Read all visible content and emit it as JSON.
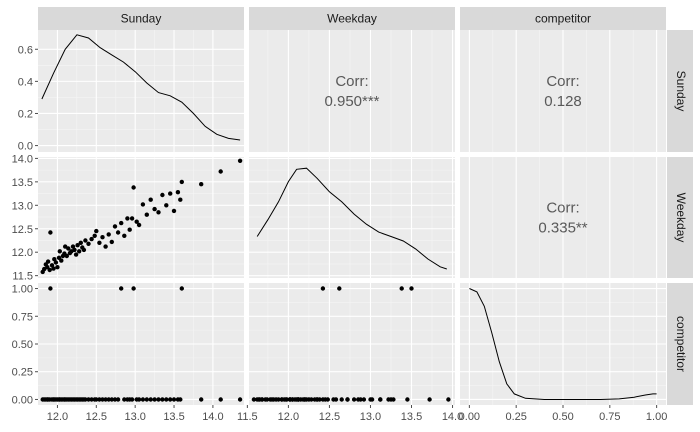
{
  "chart_data": {
    "type": "scatter-matrix",
    "variables": [
      "Sunday",
      "Weekday",
      "competitor"
    ],
    "axes": {
      "Sunday": {
        "x_range": [
          11.75,
          14.4
        ],
        "x_ticks": [
          {
            "v": 12.0,
            "l": "12.0"
          },
          {
            "v": 12.5,
            "l": "12.5"
          },
          {
            "v": 13.0,
            "l": "13.0"
          },
          {
            "v": 13.5,
            "l": "13.5"
          },
          {
            "v": 14.0,
            "l": "14.0"
          }
        ],
        "density_range": [
          -0.04,
          0.72
        ],
        "density_ticks": [
          {
            "v": 0.0,
            "l": "0.0"
          },
          {
            "v": 0.2,
            "l": "0.2"
          },
          {
            "v": 0.4,
            "l": "0.4"
          },
          {
            "v": 0.6,
            "l": "0.6"
          }
        ]
      },
      "Weekday": {
        "x_range": [
          11.52,
          14.03
        ],
        "x_ticks": [
          {
            "v": 11.5,
            "l": "11.5"
          },
          {
            "v": 12.0,
            "l": "12.0"
          },
          {
            "v": 12.5,
            "l": "12.5"
          },
          {
            "v": 13.0,
            "l": "13.0"
          },
          {
            "v": 13.5,
            "l": "13.5"
          },
          {
            "v": 14.0,
            "l": "14.0"
          }
        ],
        "y_range": [
          11.45,
          14.03
        ],
        "y_ticks": [
          {
            "v": 11.5,
            "l": "11.5"
          },
          {
            "v": 12.0,
            "l": "12.0"
          },
          {
            "v": 12.5,
            "l": "12.5"
          },
          {
            "v": 13.0,
            "l": "13.0"
          },
          {
            "v": 13.5,
            "l": "13.5"
          },
          {
            "v": 14.0,
            "l": "14.0"
          }
        ]
      },
      "competitor": {
        "x_range": [
          -0.05,
          1.05
        ],
        "x_ticks": [
          {
            "v": 0.0,
            "l": "0.00"
          },
          {
            "v": 0.25,
            "l": "0.25"
          },
          {
            "v": 0.5,
            "l": "0.50"
          },
          {
            "v": 0.75,
            "l": "0.75"
          },
          {
            "v": 1.0,
            "l": "1.00"
          }
        ],
        "y_range": [
          -0.05,
          1.05
        ],
        "y_ticks": [
          {
            "v": 0.0,
            "l": "0.00"
          },
          {
            "v": 0.25,
            "l": "0.25"
          },
          {
            "v": 0.5,
            "l": "0.50"
          },
          {
            "v": 0.75,
            "l": "0.75"
          },
          {
            "v": 1.0,
            "l": "1.00"
          }
        ]
      }
    },
    "density": {
      "Sunday": [
        [
          11.8,
          0.29
        ],
        [
          11.95,
          0.45
        ],
        [
          12.1,
          0.6
        ],
        [
          12.25,
          0.69
        ],
        [
          12.4,
          0.67
        ],
        [
          12.55,
          0.61
        ],
        [
          12.7,
          0.565
        ],
        [
          12.85,
          0.52
        ],
        [
          13.0,
          0.46
        ],
        [
          13.15,
          0.39
        ],
        [
          13.3,
          0.33
        ],
        [
          13.45,
          0.31
        ],
        [
          13.6,
          0.27
        ],
        [
          13.75,
          0.2
        ],
        [
          13.9,
          0.12
        ],
        [
          14.05,
          0.07
        ],
        [
          14.2,
          0.045
        ],
        [
          14.35,
          0.035
        ]
      ],
      "Weekday": [
        [
          11.62,
          0.37
        ],
        [
          11.75,
          0.52
        ],
        [
          11.88,
          0.68
        ],
        [
          12.0,
          0.86
        ],
        [
          12.1,
          0.97
        ],
        [
          12.22,
          0.98
        ],
        [
          12.35,
          0.89
        ],
        [
          12.5,
          0.77
        ],
        [
          12.65,
          0.68
        ],
        [
          12.8,
          0.57
        ],
        [
          12.95,
          0.48
        ],
        [
          13.1,
          0.41
        ],
        [
          13.25,
          0.37
        ],
        [
          13.4,
          0.33
        ],
        [
          13.55,
          0.26
        ],
        [
          13.7,
          0.17
        ],
        [
          13.85,
          0.1
        ],
        [
          13.93,
          0.08
        ]
      ],
      "competitor": [
        [
          0.0,
          1.0
        ],
        [
          0.04,
          0.97
        ],
        [
          0.08,
          0.84
        ],
        [
          0.12,
          0.6
        ],
        [
          0.16,
          0.34
        ],
        [
          0.2,
          0.14
        ],
        [
          0.24,
          0.05
        ],
        [
          0.3,
          0.01
        ],
        [
          0.4,
          0.0
        ],
        [
          0.5,
          0.0
        ],
        [
          0.6,
          0.0
        ],
        [
          0.7,
          0.0
        ],
        [
          0.8,
          0.005
        ],
        [
          0.88,
          0.02
        ],
        [
          0.94,
          0.04
        ],
        [
          0.98,
          0.05
        ],
        [
          1.0,
          0.05
        ]
      ]
    },
    "points": [
      [
        11.81,
        11.58,
        0
      ],
      [
        11.83,
        11.64,
        0
      ],
      [
        11.85,
        11.74,
        0
      ],
      [
        11.87,
        11.68,
        0
      ],
      [
        11.88,
        11.8,
        0
      ],
      [
        11.9,
        11.62,
        0
      ],
      [
        11.91,
        12.42,
        1
      ],
      [
        11.93,
        11.72,
        0
      ],
      [
        11.95,
        11.65,
        0
      ],
      [
        11.96,
        11.85,
        0
      ],
      [
        11.98,
        11.78,
        0
      ],
      [
        12.0,
        11.68,
        0
      ],
      [
        12.02,
        11.88,
        0
      ],
      [
        12.03,
        12.02,
        0
      ],
      [
        12.05,
        11.82,
        0
      ],
      [
        12.07,
        11.92,
        0
      ],
      [
        12.09,
        11.97,
        0
      ],
      [
        12.1,
        12.12,
        0
      ],
      [
        12.12,
        11.92,
        0
      ],
      [
        12.14,
        12.08,
        0
      ],
      [
        12.16,
        11.98,
        0
      ],
      [
        12.18,
        12.02,
        0
      ],
      [
        12.2,
        12.12,
        0
      ],
      [
        12.22,
        12.05,
        0
      ],
      [
        12.24,
        11.95,
        0
      ],
      [
        12.26,
        12.15,
        0
      ],
      [
        12.28,
        12.02,
        0
      ],
      [
        12.3,
        12.2,
        0
      ],
      [
        12.32,
        12.1,
        0
      ],
      [
        12.34,
        12.05,
        0
      ],
      [
        12.36,
        12.25,
        0
      ],
      [
        12.4,
        12.18,
        0
      ],
      [
        12.44,
        12.28,
        0
      ],
      [
        12.48,
        12.35,
        0
      ],
      [
        12.5,
        12.45,
        0
      ],
      [
        12.54,
        12.2,
        0
      ],
      [
        12.58,
        12.32,
        0
      ],
      [
        12.62,
        12.12,
        0
      ],
      [
        12.66,
        12.38,
        0
      ],
      [
        12.7,
        12.22,
        0
      ],
      [
        12.74,
        12.55,
        0
      ],
      [
        12.78,
        12.42,
        0
      ],
      [
        12.82,
        12.62,
        1
      ],
      [
        12.86,
        12.35,
        0
      ],
      [
        12.9,
        12.72,
        0
      ],
      [
        12.93,
        12.48,
        0
      ],
      [
        12.96,
        12.72,
        0
      ],
      [
        12.98,
        13.38,
        1
      ],
      [
        13.02,
        12.65,
        0
      ],
      [
        13.05,
        12.58,
        0
      ],
      [
        13.1,
        13.02,
        0
      ],
      [
        13.15,
        12.8,
        0
      ],
      [
        13.2,
        13.12,
        0
      ],
      [
        13.25,
        12.92,
        0
      ],
      [
        13.3,
        12.85,
        0
      ],
      [
        13.35,
        13.22,
        0
      ],
      [
        13.4,
        13.0,
        0
      ],
      [
        13.45,
        13.25,
        0
      ],
      [
        13.5,
        12.88,
        0
      ],
      [
        13.55,
        13.28,
        0
      ],
      [
        13.58,
        13.12,
        0
      ],
      [
        13.6,
        13.5,
        1
      ],
      [
        13.85,
        13.45,
        0
      ],
      [
        14.1,
        13.72,
        0
      ],
      [
        14.35,
        13.95,
        0
      ]
    ],
    "correlations": {
      "Sunday_Weekday": {
        "label": "Corr:",
        "value": "0.950***"
      },
      "Sunday_competitor": {
        "label": "Corr:",
        "value": "0.128"
      },
      "Weekday_competitor": {
        "label": "Corr:",
        "value": "0.335**"
      }
    },
    "colors": {
      "panel": "#ebebeb",
      "grid_major": "#ffffff",
      "grid_minor": "#f5f5f5",
      "strip": "#d9d9d9",
      "mark": "#000000",
      "tick": "#4d4d4d"
    }
  }
}
